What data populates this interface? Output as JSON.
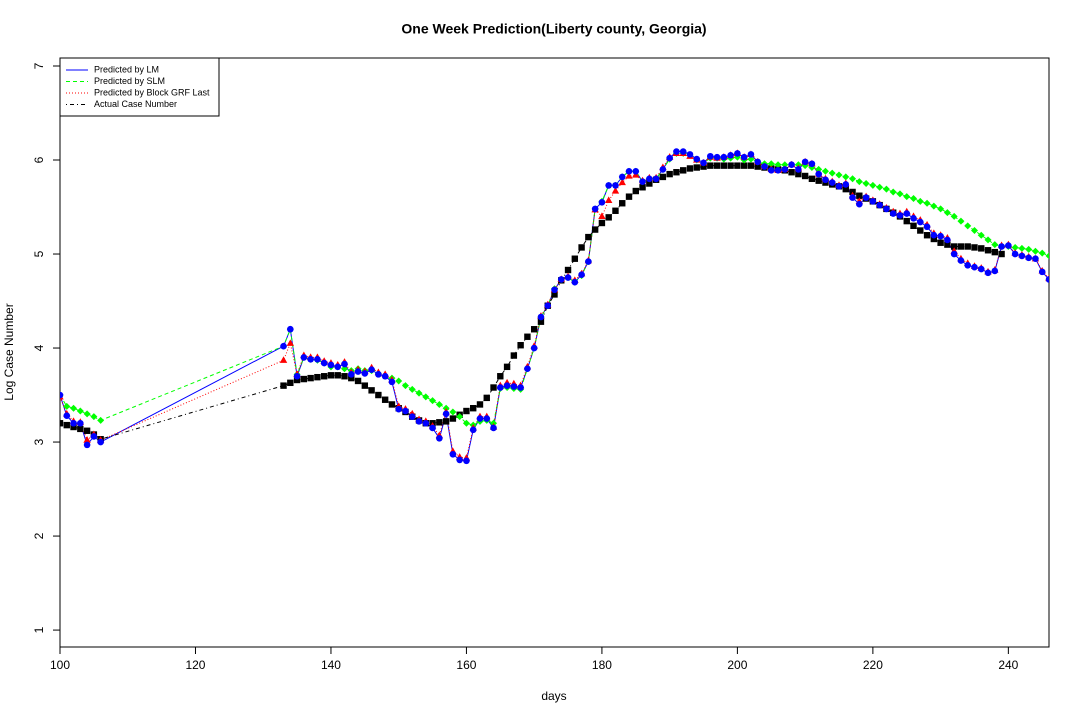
{
  "chart_data": {
    "type": "line",
    "title": "One Week Prediction(Liberty county, Georgia)",
    "x_label": "days",
    "y_label": "Log Case Number",
    "xlim": [
      100,
      246
    ],
    "ylim": [
      0.82,
      7.085
    ],
    "xticks": [
      100,
      120,
      140,
      160,
      180,
      200,
      220,
      240
    ],
    "yticks": [
      1,
      2,
      3,
      4,
      5,
      6,
      7
    ],
    "grid": false,
    "legend": "topleft",
    "x": [
      100,
      101,
      102,
      103,
      104,
      105,
      106,
      133,
      134,
      135,
      136,
      137,
      138,
      139,
      140,
      141,
      142,
      143,
      144,
      145,
      146,
      147,
      148,
      149,
      150,
      151,
      152,
      153,
      154,
      155,
      156,
      157,
      158,
      159,
      160,
      161,
      162,
      163,
      164,
      165,
      166,
      167,
      168,
      169,
      170,
      171,
      172,
      173,
      174,
      175,
      176,
      177,
      178,
      179,
      180,
      181,
      182,
      183,
      184,
      185,
      186,
      187,
      188,
      189,
      190,
      191,
      192,
      193,
      194,
      195,
      196,
      197,
      198,
      199,
      200,
      201,
      202,
      203,
      204,
      205,
      206,
      207,
      208,
      209,
      210,
      211,
      212,
      213,
      214,
      215,
      216,
      217,
      218,
      219,
      220,
      221,
      222,
      223,
      224,
      225,
      226,
      227,
      228,
      229,
      230,
      231,
      232,
      233,
      234,
      235,
      236,
      237,
      238,
      239,
      240,
      241,
      242,
      243,
      244,
      245,
      246
    ],
    "series": [
      {
        "name": "Predicted by LM",
        "color": "#0000ff",
        "dash": "solid",
        "marker": "circle",
        "values": [
          3.5,
          3.28,
          3.2,
          3.2,
          2.97,
          3.06,
          3.0,
          4.02,
          4.2,
          3.7,
          3.9,
          3.88,
          3.88,
          3.84,
          3.82,
          3.8,
          3.83,
          3.72,
          3.75,
          3.73,
          3.77,
          3.72,
          3.7,
          3.64,
          3.35,
          3.33,
          3.27,
          3.22,
          3.2,
          3.15,
          3.04,
          3.3,
          2.87,
          2.81,
          2.8,
          3.13,
          3.25,
          3.25,
          3.15,
          3.58,
          3.6,
          3.59,
          3.58,
          3.78,
          4.0,
          4.33,
          4.45,
          4.62,
          4.73,
          4.75,
          4.7,
          4.78,
          4.92,
          5.48,
          5.55,
          5.73,
          5.73,
          5.82,
          5.88,
          5.88,
          5.77,
          5.8,
          5.8,
          5.9,
          6.02,
          6.09,
          6.09,
          6.06,
          6.01,
          5.97,
          6.04,
          6.03,
          6.03,
          6.05,
          6.07,
          6.03,
          6.06,
          5.98,
          5.93,
          5.89,
          5.89,
          5.9,
          5.95,
          5.9,
          5.98,
          5.96,
          5.85,
          5.79,
          5.76,
          5.72,
          5.74,
          5.6,
          5.53,
          5.6,
          5.56,
          5.52,
          5.48,
          5.43,
          5.41,
          5.43,
          5.38,
          5.34,
          5.29,
          5.2,
          5.19,
          5.15,
          5.0,
          4.93,
          4.88,
          4.86,
          4.84,
          4.8,
          4.82,
          5.08,
          5.09,
          5.0,
          4.98,
          4.96,
          4.95,
          4.81,
          4.73
        ]
      },
      {
        "name": "Predicted by SLM",
        "color": "#00ff00",
        "dash": "dashed",
        "marker": "diamond",
        "values": [
          3.5,
          3.38,
          3.36,
          3.33,
          3.3,
          3.27,
          3.23,
          4.02,
          4.2,
          3.72,
          3.9,
          3.88,
          3.87,
          3.84,
          3.8,
          3.8,
          3.78,
          3.76,
          3.78,
          3.76,
          3.76,
          3.73,
          3.7,
          3.68,
          3.65,
          3.6,
          3.56,
          3.52,
          3.48,
          3.44,
          3.4,
          3.36,
          3.32,
          3.27,
          3.2,
          3.18,
          3.22,
          3.23,
          3.2,
          3.57,
          3.58,
          3.57,
          3.56,
          3.78,
          4.0,
          4.33,
          4.45,
          4.63,
          4.73,
          4.75,
          4.7,
          4.77,
          4.92,
          5.48,
          5.56,
          5.73,
          5.73,
          5.82,
          5.88,
          5.88,
          5.77,
          5.8,
          5.8,
          5.9,
          6.01,
          6.07,
          6.07,
          6.05,
          6.0,
          5.97,
          6.02,
          6.02,
          6.01,
          6.02,
          6.03,
          6.0,
          6.01,
          5.98,
          5.96,
          5.96,
          5.95,
          5.95,
          5.95,
          5.95,
          5.94,
          5.92,
          5.9,
          5.88,
          5.86,
          5.84,
          5.82,
          5.8,
          5.77,
          5.75,
          5.73,
          5.71,
          5.69,
          5.66,
          5.64,
          5.61,
          5.59,
          5.56,
          5.54,
          5.51,
          5.48,
          5.44,
          5.4,
          5.35,
          5.3,
          5.25,
          5.2,
          5.15,
          5.1,
          5.08,
          5.08,
          5.07,
          5.06,
          5.05,
          5.03,
          5.01,
          4.98
        ]
      },
      {
        "name": "Predicted by Block GRF Last",
        "color": "#ff0000",
        "dash": "dotted",
        "marker": "triangle",
        "values": [
          3.48,
          3.3,
          3.22,
          3.21,
          3.02,
          3.08,
          3.02,
          3.87,
          4.05,
          3.72,
          3.92,
          3.9,
          3.9,
          3.86,
          3.84,
          3.82,
          3.85,
          3.74,
          3.77,
          3.75,
          3.79,
          3.74,
          3.72,
          3.66,
          3.38,
          3.35,
          3.3,
          3.24,
          3.22,
          3.17,
          3.07,
          3.32,
          2.9,
          2.84,
          2.83,
          3.15,
          3.27,
          3.27,
          3.16,
          3.6,
          3.63,
          3.62,
          3.6,
          3.8,
          4.02,
          4.34,
          4.46,
          4.62,
          4.73,
          4.76,
          4.72,
          4.79,
          4.93,
          5.47,
          5.4,
          5.57,
          5.67,
          5.76,
          5.83,
          5.84,
          5.78,
          5.81,
          5.81,
          5.92,
          6.03,
          6.07,
          6.07,
          6.04,
          6.0,
          5.97,
          6.03,
          6.02,
          6.03,
          6.05,
          6.07,
          6.03,
          6.06,
          5.98,
          5.93,
          5.9,
          5.89,
          5.9,
          5.95,
          5.91,
          5.98,
          5.96,
          5.85,
          5.8,
          5.77,
          5.73,
          5.75,
          5.62,
          5.56,
          5.61,
          5.57,
          5.53,
          5.49,
          5.45,
          5.43,
          5.45,
          5.4,
          5.36,
          5.31,
          5.22,
          5.2,
          5.17,
          5.03,
          4.95,
          4.9,
          4.87,
          4.85,
          4.81,
          4.83,
          5.09,
          5.1,
          5.01,
          4.99,
          4.97,
          4.95,
          4.82,
          4.74
        ]
      },
      {
        "name": "Actual Case Number",
        "color": "#000000",
        "dash": "dashdot",
        "marker": "square",
        "values": [
          3.2,
          3.18,
          3.16,
          3.14,
          3.12,
          3.08,
          3.03,
          3.6,
          3.63,
          3.66,
          3.67,
          3.68,
          3.69,
          3.7,
          3.71,
          3.71,
          3.7,
          3.68,
          3.65,
          3.6,
          3.55,
          3.5,
          3.45,
          3.4,
          3.36,
          3.32,
          3.27,
          3.23,
          3.2,
          3.2,
          3.21,
          3.22,
          3.25,
          3.29,
          3.33,
          3.36,
          3.4,
          3.47,
          3.58,
          3.7,
          3.8,
          3.92,
          4.03,
          4.12,
          4.2,
          4.28,
          4.45,
          4.57,
          4.72,
          4.83,
          4.95,
          5.07,
          5.18,
          5.26,
          5.33,
          5.39,
          5.46,
          5.54,
          5.61,
          5.67,
          5.71,
          5.75,
          5.79,
          5.82,
          5.85,
          5.87,
          5.89,
          5.91,
          5.92,
          5.93,
          5.94,
          5.94,
          5.94,
          5.94,
          5.94,
          5.94,
          5.94,
          5.93,
          5.92,
          5.91,
          5.9,
          5.89,
          5.87,
          5.85,
          5.83,
          5.8,
          5.78,
          5.76,
          5.74,
          5.72,
          5.69,
          5.66,
          5.62,
          5.59,
          5.56,
          5.52,
          5.48,
          5.44,
          5.4,
          5.35,
          5.3,
          5.25,
          5.2,
          5.16,
          5.12,
          5.1,
          5.08,
          5.08,
          5.08,
          5.07,
          5.06,
          5.04,
          5.02,
          5.0,
          null,
          null,
          null,
          null,
          null,
          null,
          null
        ]
      }
    ]
  }
}
